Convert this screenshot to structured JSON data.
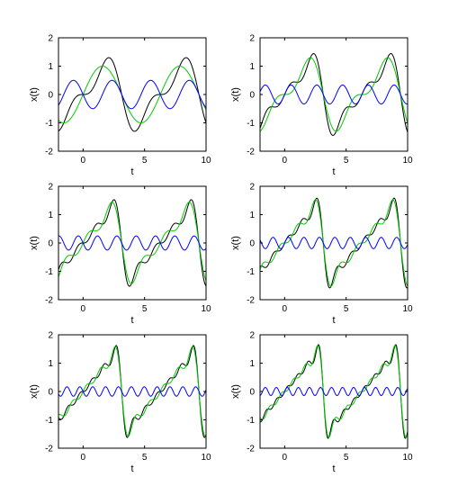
{
  "chart_data": [
    {
      "type": "line",
      "xlabel": "t",
      "ylabel": "x(t)",
      "xlim": [
        -2,
        10
      ],
      "ylim": [
        -2,
        2
      ],
      "xticks": [
        0,
        5,
        10
      ],
      "yticks": [
        -2,
        -1,
        0,
        1,
        2
      ],
      "grid": false,
      "period": 6.2832,
      "harmonics": 2,
      "series": [
        {
          "role": "approximation",
          "color": "#000000",
          "harmonics_used": 2
        },
        {
          "role": "previous-approximation",
          "color": "#00cc00",
          "harmonics_used": 1
        },
        {
          "role": "added-harmonic",
          "color": "#0000ff",
          "harmonic_index": 2
        }
      ]
    },
    {
      "type": "line",
      "xlabel": "t",
      "ylabel": "x(t)",
      "xlim": [
        -2,
        10
      ],
      "ylim": [
        -2,
        2
      ],
      "xticks": [
        0,
        5,
        10
      ],
      "yticks": [
        -2,
        -1,
        0,
        1,
        2
      ],
      "grid": false,
      "period": 6.2832,
      "harmonics": 3,
      "series": [
        {
          "role": "approximation",
          "color": "#000000",
          "harmonics_used": 3
        },
        {
          "role": "previous-approximation",
          "color": "#00cc00",
          "harmonics_used": 2
        },
        {
          "role": "added-harmonic",
          "color": "#0000ff",
          "harmonic_index": 3
        }
      ]
    },
    {
      "type": "line",
      "xlabel": "t",
      "ylabel": "x(t)",
      "xlim": [
        -2,
        10
      ],
      "ylim": [
        -2,
        2
      ],
      "xticks": [
        0,
        5,
        10
      ],
      "yticks": [
        -2,
        -1,
        0,
        1,
        2
      ],
      "grid": false,
      "period": 6.2832,
      "harmonics": 4,
      "series": [
        {
          "role": "approximation",
          "color": "#000000",
          "harmonics_used": 4
        },
        {
          "role": "previous-approximation",
          "color": "#00cc00",
          "harmonics_used": 3
        },
        {
          "role": "added-harmonic",
          "color": "#0000ff",
          "harmonic_index": 4
        }
      ]
    },
    {
      "type": "line",
      "xlabel": "t",
      "ylabel": "x(t)",
      "xlim": [
        -2,
        10
      ],
      "ylim": [
        -2,
        2
      ],
      "xticks": [
        0,
        5,
        10
      ],
      "yticks": [
        -2,
        -1,
        0,
        1,
        2
      ],
      "grid": false,
      "period": 6.2832,
      "harmonics": 5,
      "series": [
        {
          "role": "approximation",
          "color": "#000000",
          "harmonics_used": 5
        },
        {
          "role": "previous-approximation",
          "color": "#00cc00",
          "harmonics_used": 4
        },
        {
          "role": "added-harmonic",
          "color": "#0000ff",
          "harmonic_index": 5
        }
      ]
    },
    {
      "type": "line",
      "xlabel": "t",
      "ylabel": "x(t)",
      "xlim": [
        -2,
        10
      ],
      "ylim": [
        -2,
        2
      ],
      "xticks": [
        0,
        5,
        10
      ],
      "yticks": [
        -2,
        -1,
        0,
        1,
        2
      ],
      "grid": false,
      "period": 6.2832,
      "harmonics": 6,
      "series": [
        {
          "role": "approximation",
          "color": "#000000",
          "harmonics_used": 6
        },
        {
          "role": "previous-approximation",
          "color": "#00cc00",
          "harmonics_used": 5
        },
        {
          "role": "added-harmonic",
          "color": "#0000ff",
          "harmonic_index": 6
        }
      ]
    },
    {
      "type": "line",
      "xlabel": "t",
      "ylabel": "x(t)",
      "xlim": [
        -2,
        10
      ],
      "ylim": [
        -2,
        2
      ],
      "xticks": [
        0,
        5,
        10
      ],
      "yticks": [
        -2,
        -1,
        0,
        1,
        2
      ],
      "grid": false,
      "period": 6.2832,
      "harmonics": 7,
      "series": [
        {
          "role": "approximation",
          "color": "#000000",
          "harmonics_used": 7
        },
        {
          "role": "previous-approximation",
          "color": "#00cc00",
          "harmonics_used": 6
        },
        {
          "role": "added-harmonic",
          "color": "#0000ff",
          "harmonic_index": 7
        }
      ]
    }
  ]
}
